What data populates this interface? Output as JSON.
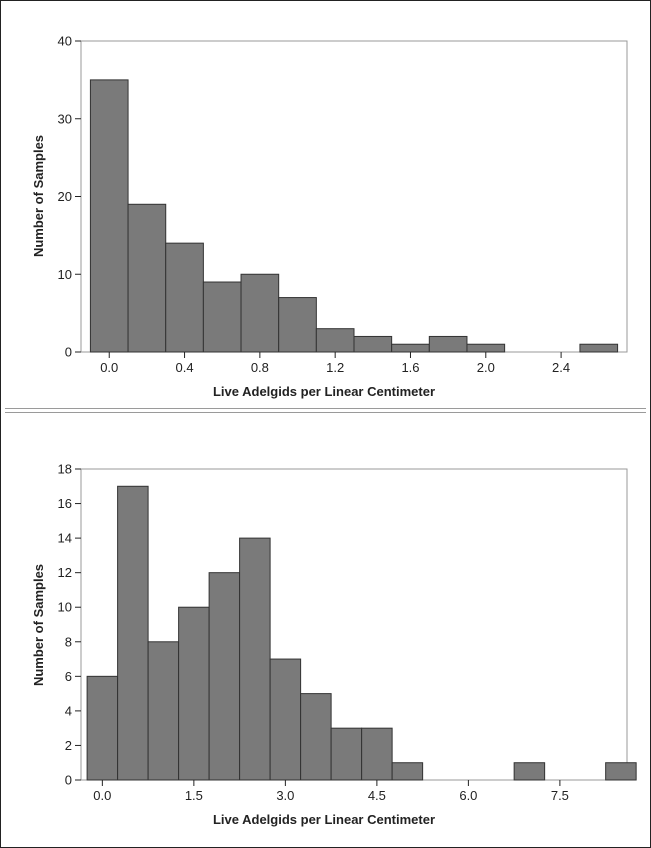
{
  "chart_data": [
    {
      "type": "bar",
      "title": "",
      "xlabel": "Live Adelgids per Linear Centimeter",
      "ylabel": "Number of Samples",
      "xlim": [
        -0.15,
        2.75
      ],
      "ylim": [
        0,
        40
      ],
      "xticks": [
        "0.0",
        "0.4",
        "0.8",
        "1.2",
        "1.6",
        "2.0",
        "2.4"
      ],
      "xtick_values": [
        0.0,
        0.4,
        0.8,
        1.2,
        1.6,
        2.0,
        2.4
      ],
      "yticks": [
        "0",
        "10",
        "20",
        "30",
        "40"
      ],
      "ytick_values": [
        0,
        10,
        20,
        30,
        40
      ],
      "bin_width": 0.2,
      "bin_starts": [
        -0.1,
        0.1,
        0.3,
        0.5,
        0.7,
        0.9,
        1.1,
        1.3,
        1.5,
        1.7,
        1.9,
        2.1,
        2.3,
        2.5
      ],
      "values": [
        35,
        19,
        14,
        9,
        10,
        7,
        3,
        2,
        1,
        2,
        1,
        0,
        0,
        1
      ],
      "grid": false
    },
    {
      "type": "bar",
      "title": "",
      "xlabel": "Live Adelgids per Linear Centimeter",
      "ylabel": "Number of Samples",
      "xlim": [
        -0.35,
        8.6
      ],
      "ylim": [
        0,
        18
      ],
      "xticks": [
        "0.0",
        "1.5",
        "3.0",
        "4.5",
        "6.0",
        "7.5"
      ],
      "xtick_values": [
        0.0,
        1.5,
        3.0,
        4.5,
        6.0,
        7.5
      ],
      "yticks": [
        "0",
        "2",
        "4",
        "6",
        "8",
        "10",
        "12",
        "14",
        "16",
        "18"
      ],
      "ytick_values": [
        0,
        2,
        4,
        6,
        8,
        10,
        12,
        14,
        16,
        18
      ],
      "bin_width": 0.5,
      "bin_starts": [
        -0.25,
        0.25,
        0.75,
        1.25,
        1.75,
        2.25,
        2.75,
        3.25,
        3.75,
        4.25,
        4.75,
        5.25,
        5.75,
        6.25,
        6.75,
        7.25,
        7.75,
        8.25
      ],
      "values": [
        6,
        17,
        8,
        10,
        12,
        14,
        7,
        5,
        3,
        3,
        1,
        0,
        0,
        0,
        1,
        0,
        0,
        1
      ],
      "grid": false
    }
  ],
  "colors": {
    "bar_fill": "#7a7a7a",
    "bar_stroke": "#333333",
    "frame": "#999999",
    "text": "#222222"
  }
}
